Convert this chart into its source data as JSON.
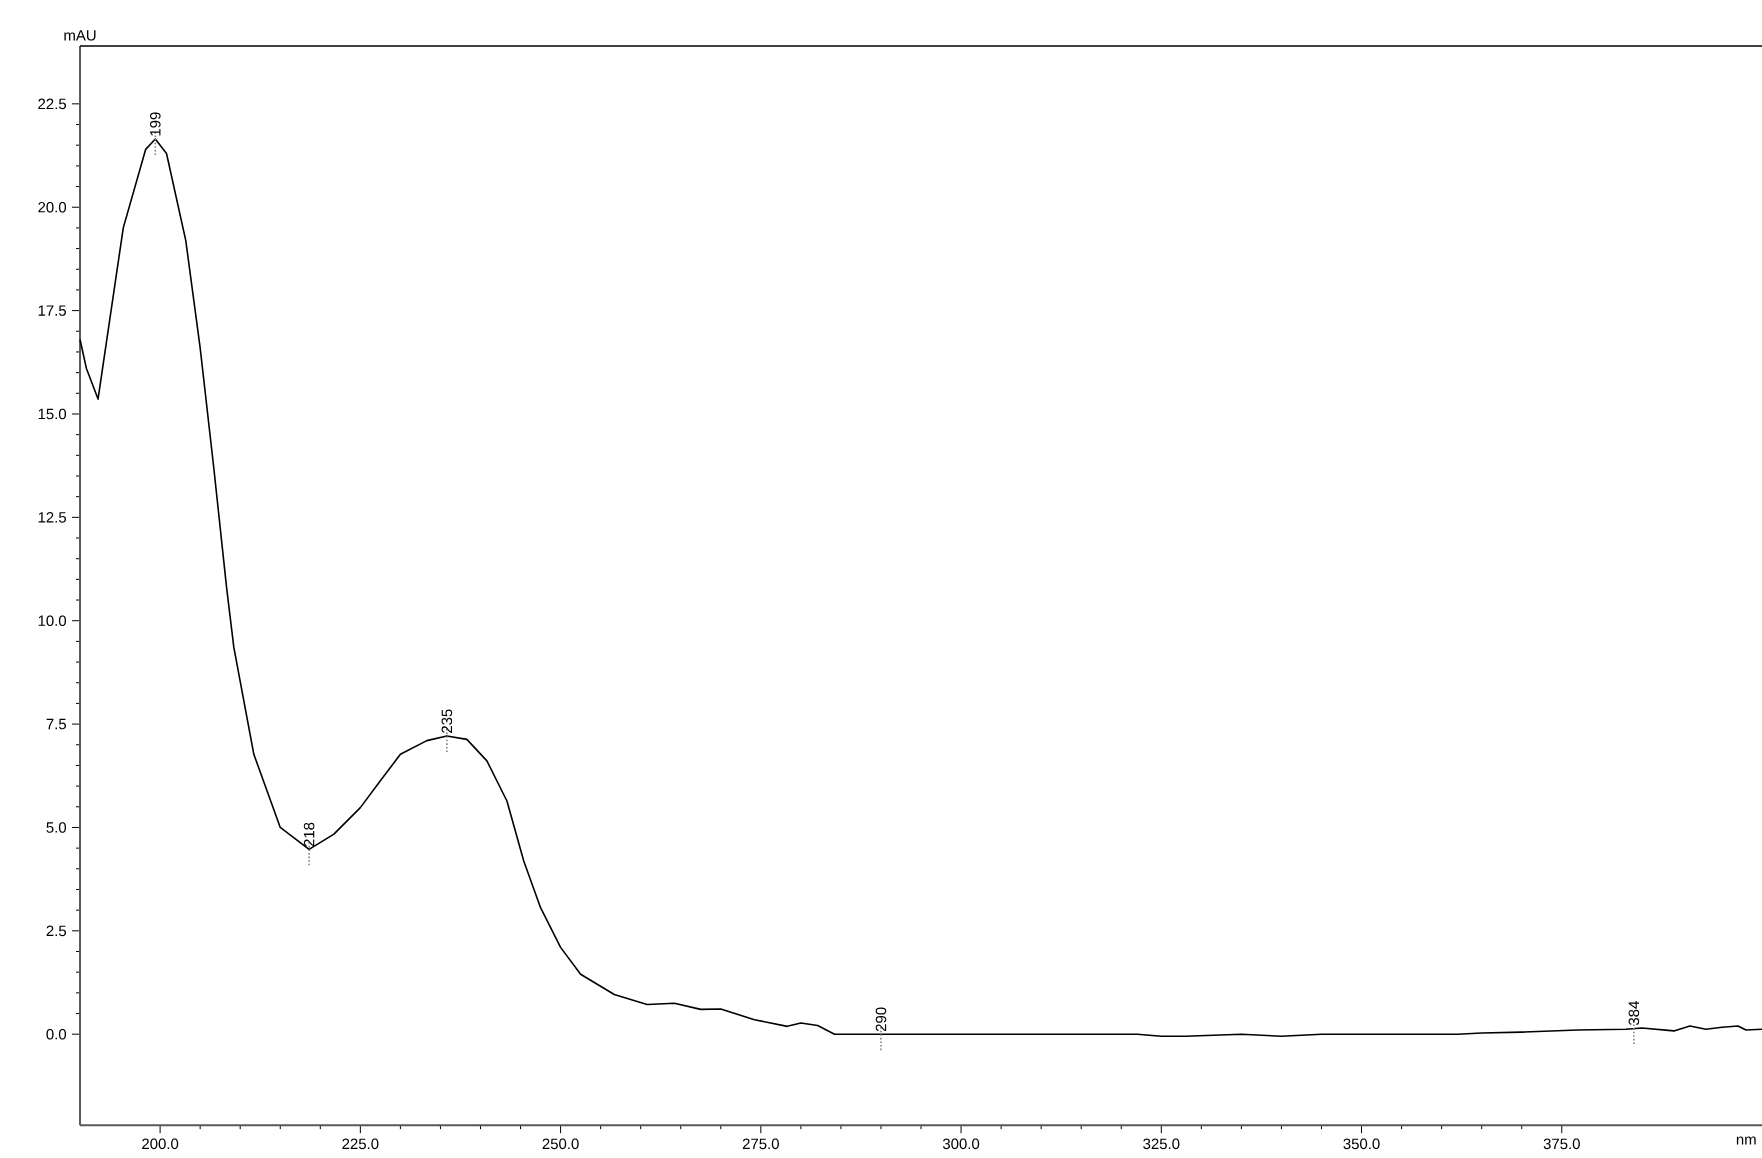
{
  "chart_data": {
    "type": "line",
    "xlabel": "nm",
    "ylabel": "mAU",
    "x": [
      190,
      190.8,
      192.25,
      195.4,
      198.2,
      199.4,
      200.8,
      203.2,
      205,
      206.7,
      208.3,
      209.2,
      211.7,
      215,
      218.6,
      221.7,
      225,
      227.5,
      230,
      233.3,
      235.8,
      238.3,
      240.8,
      243.3,
      245.4,
      247.5,
      250,
      252.5,
      256.7,
      260.8,
      264.2,
      267.5,
      270,
      274.2,
      278.3,
      280,
      282.1,
      284.2,
      300,
      322,
      325,
      328,
      335,
      340,
      345,
      350,
      362,
      365,
      370,
      377,
      383,
      385,
      389,
      391,
      393,
      395,
      397,
      398,
      400
    ],
    "values": [
      16.8,
      16.1,
      15.36,
      19.5,
      21.4,
      21.65,
      21.3,
      19.2,
      16.6,
      13.7,
      10.8,
      9.36,
      6.77,
      5.0,
      4.47,
      4.84,
      5.48,
      6.13,
      6.77,
      7.1,
      7.21,
      7.13,
      6.61,
      5.64,
      4.19,
      3.06,
      2.1,
      1.45,
      0.96,
      0.72,
      0.75,
      0.6,
      0.61,
      0.35,
      0.19,
      0.27,
      0.21,
      0.0,
      0.0,
      0.0,
      -0.05,
      -0.05,
      0.0,
      -0.05,
      0.0,
      0.0,
      0.0,
      0.03,
      0.05,
      0.1,
      0.12,
      0.15,
      0.08,
      0.2,
      0.12,
      0.17,
      0.2,
      0.1,
      0.12
    ],
    "color": "#000000",
    "xlim": [
      190,
      400
    ],
    "ylim": [
      -2.2,
      23.9
    ],
    "xticks": [
      {
        "value": 200,
        "label": "200.0"
      },
      {
        "value": 225,
        "label": "225.0"
      },
      {
        "value": 250,
        "label": "250.0"
      },
      {
        "value": 275,
        "label": "275.0"
      },
      {
        "value": 300,
        "label": "300.0"
      },
      {
        "value": 325,
        "label": "325.0"
      },
      {
        "value": 350,
        "label": "350.0"
      },
      {
        "value": 375,
        "label": "375.0"
      }
    ],
    "yticks": [
      {
        "value": 0,
        "label": "0.0"
      },
      {
        "value": 2.5,
        "label": "2.5"
      },
      {
        "value": 5,
        "label": "5.0"
      },
      {
        "value": 7.5,
        "label": "7.5"
      },
      {
        "value": 10,
        "label": "10.0"
      },
      {
        "value": 12.5,
        "label": "12.5"
      },
      {
        "value": 15,
        "label": "15.0"
      },
      {
        "value": 17.5,
        "label": "17.5"
      },
      {
        "value": 20,
        "label": "20.0"
      },
      {
        "value": 22.5,
        "label": "22.5"
      }
    ],
    "annotations": [
      {
        "text": "199",
        "x": 199.4,
        "y": 21.65
      },
      {
        "text": "218",
        "x": 218.6,
        "y": 4.47
      },
      {
        "text": "235",
        "x": 235.8,
        "y": 7.21
      },
      {
        "text": "290",
        "x": 290,
        "y": 0.0
      },
      {
        "text": "384",
        "x": 384,
        "y": 0.15
      }
    ],
    "grid": false,
    "marker": "none",
    "line_style": "solid"
  }
}
